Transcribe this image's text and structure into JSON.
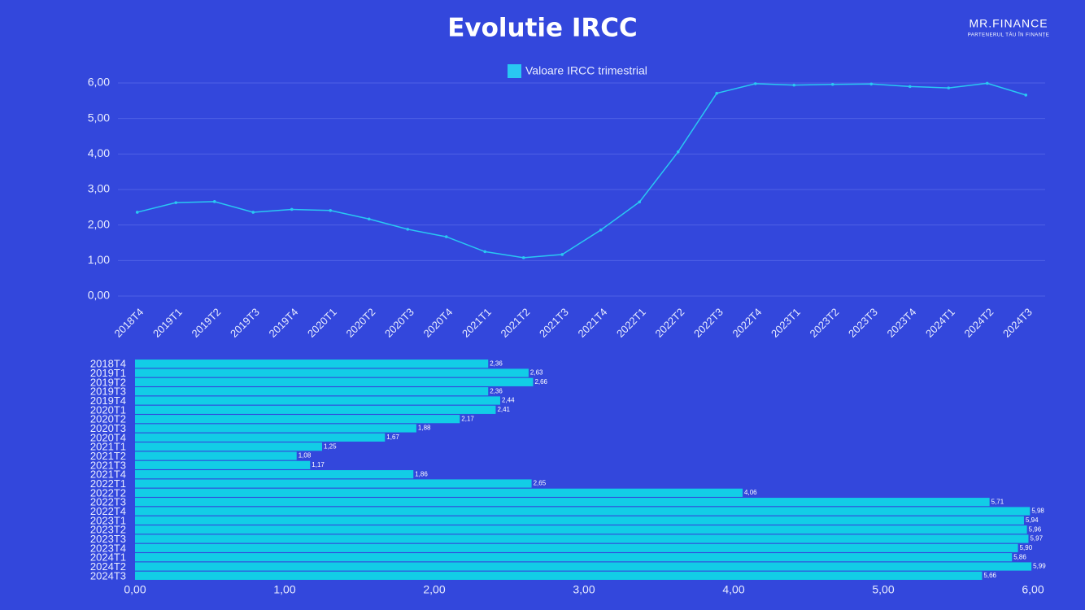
{
  "brand": {
    "logo": "MR.FINANCE",
    "tagline": "PARTENERUL TĂU ÎN FINANȚE"
  },
  "chart_data": [
    {
      "type": "line",
      "title": "Evolutie IRCC",
      "categories": [
        "2018T4",
        "2019T1",
        "2019T2",
        "2019T3",
        "2019T4",
        "2020T1",
        "2020T2",
        "2020T3",
        "2020T4",
        "2021T1",
        "2021T2",
        "2021T3",
        "2021T4",
        "2022T1",
        "2022T2",
        "2022T3",
        "2022T4",
        "2023T1",
        "2023T2",
        "2023T3",
        "2023T4",
        "2024T1",
        "2024T2",
        "2024T3"
      ],
      "series": [
        {
          "name": "Valoare IRCC trimestrial",
          "color": "#29c8f2",
          "values": [
            2.36,
            2.63,
            2.66,
            2.36,
            2.44,
            2.41,
            2.17,
            1.88,
            1.67,
            1.25,
            1.08,
            1.17,
            1.86,
            2.65,
            4.06,
            5.71,
            5.98,
            5.94,
            5.96,
            5.97,
            5.9,
            5.86,
            5.99,
            5.66
          ]
        }
      ],
      "ylim": [
        0,
        6
      ],
      "yticks": [
        {
          "value": 0,
          "label": "0,00"
        },
        {
          "value": 1,
          "label": "1,00"
        },
        {
          "value": 2,
          "label": "2,00"
        },
        {
          "value": 3,
          "label": "3,00"
        },
        {
          "value": 4,
          "label": "4,00"
        },
        {
          "value": 5,
          "label": "5,00"
        },
        {
          "value": 6,
          "label": "6,00"
        }
      ],
      "grid": true,
      "legend": "top"
    },
    {
      "type": "bar",
      "orientation": "horizontal",
      "color": "#12cde6",
      "categories": [
        "2018T4",
        "2019T1",
        "2019T2",
        "2019T3",
        "2019T4",
        "2020T1",
        "2020T2",
        "2020T3",
        "2020T4",
        "2021T1",
        "2021T2",
        "2021T3",
        "2021T4",
        "2022T1",
        "2022T2",
        "2022T3",
        "2022T4",
        "2023T1",
        "2023T2",
        "2023T3",
        "2023T4",
        "2024T1",
        "2024T2",
        "2024T3"
      ],
      "values": [
        2.36,
        2.63,
        2.66,
        2.36,
        2.44,
        2.41,
        2.17,
        1.88,
        1.67,
        1.25,
        1.08,
        1.17,
        1.86,
        2.65,
        4.06,
        5.71,
        5.98,
        5.94,
        5.96,
        5.97,
        5.9,
        5.86,
        5.99,
        5.66
      ],
      "value_labels": [
        "2,36",
        "2,63",
        "2,66",
        "2,36",
        "2,44",
        "2,41",
        "2,17",
        "1,88",
        "1,67",
        "1,25",
        "1,08",
        "1,17",
        "1,86",
        "2,65",
        "4,06",
        "5,71",
        "5,98",
        "5,94",
        "5,96",
        "5,97",
        "5,90",
        "5,86",
        "5,99",
        "5,66"
      ],
      "xlim": [
        0,
        6
      ],
      "xticks": [
        {
          "value": 0,
          "label": "0,00"
        },
        {
          "value": 1,
          "label": "1,00"
        },
        {
          "value": 2,
          "label": "2,00"
        },
        {
          "value": 3,
          "label": "3,00"
        },
        {
          "value": 4,
          "label": "4,00"
        },
        {
          "value": 5,
          "label": "5,00"
        },
        {
          "value": 6,
          "label": "6,00"
        }
      ],
      "grid": false
    }
  ]
}
